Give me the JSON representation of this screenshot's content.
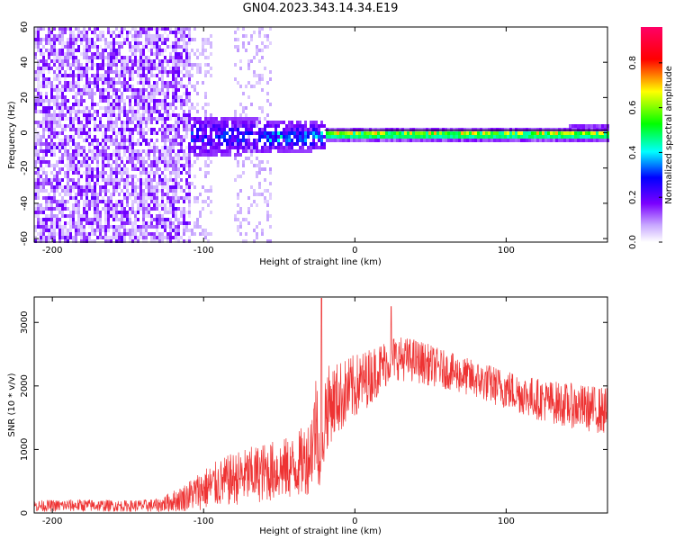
{
  "page_title": "GN04.2023.343.14.34.E19",
  "chart_data": [
    {
      "type": "heatmap",
      "title": "GN04.2023.343.14.34.E19",
      "xlabel": "Height of straight line (km)",
      "ylabel": "Frequency (Hz)",
      "xlim": [
        -212,
        167
      ],
      "ylim": [
        -62,
        60
      ],
      "xticks": [
        -200,
        -100,
        0,
        100
      ],
      "yticks": [
        60,
        40,
        20,
        0,
        -20,
        -40,
        -60
      ],
      "colorbar": {
        "label": "Normalized spectral amplitude",
        "range": [
          0.0,
          0.96
        ],
        "ticks": [
          0.0,
          0.2,
          0.4,
          0.6,
          0.8
        ],
        "colormap": [
          "#ffffff",
          "#7a00ff",
          "#0000ff",
          "#00ffff",
          "#00ff00",
          "#ffff00",
          "#ff0000",
          "#ff0066"
        ]
      },
      "regions": [
        {
          "x_range": [
            -212,
            -110
          ],
          "freq_range": [
            -60,
            60
          ],
          "amplitude": 0.05,
          "pattern": "broadband noise"
        },
        {
          "x_range": [
            -110,
            -20
          ],
          "freq_range": [
            -15,
            10
          ],
          "amplitude": 0.3,
          "pattern": "cluster"
        },
        {
          "x_range": [
            -20,
            167
          ],
          "freq_range": [
            -2,
            2
          ],
          "amplitude": 0.8,
          "pattern": "narrow band near 0 Hz"
        }
      ],
      "line_level_hz": 1.5
    },
    {
      "type": "line",
      "xlabel": "Height of straight line (km)",
      "ylabel": "SNR (10 * v/v)",
      "xlim": [
        -212,
        167
      ],
      "ylim": [
        0,
        3400
      ],
      "xticks": [
        -200,
        -100,
        0,
        100
      ],
      "yticks": [
        0,
        1000,
        2000,
        3000
      ],
      "color": "#ee3333",
      "envelope": {
        "x": [
          -212,
          -180,
          -150,
          -130,
          -115,
          -100,
          -80,
          -60,
          -40,
          -30,
          -25,
          -22,
          -20,
          -15,
          -5,
          10,
          25,
          40,
          60,
          80,
          100,
          120,
          140,
          167
        ],
        "center": [
          110,
          120,
          110,
          120,
          220,
          380,
          540,
          640,
          720,
          900,
          1500,
          400,
          1600,
          1750,
          1900,
          2150,
          2450,
          2400,
          2250,
          2100,
          1950,
          1800,
          1700,
          1600
        ],
        "spread": [
          90,
          100,
          90,
          110,
          200,
          330,
          420,
          470,
          500,
          600,
          900,
          300,
          700,
          600,
          550,
          450,
          350,
          350,
          300,
          300,
          320,
          330,
          350,
          380
        ]
      },
      "peaks": [
        {
          "x": -22,
          "y": 3380
        },
        {
          "x": 24,
          "y": 3250
        }
      ]
    }
  ]
}
